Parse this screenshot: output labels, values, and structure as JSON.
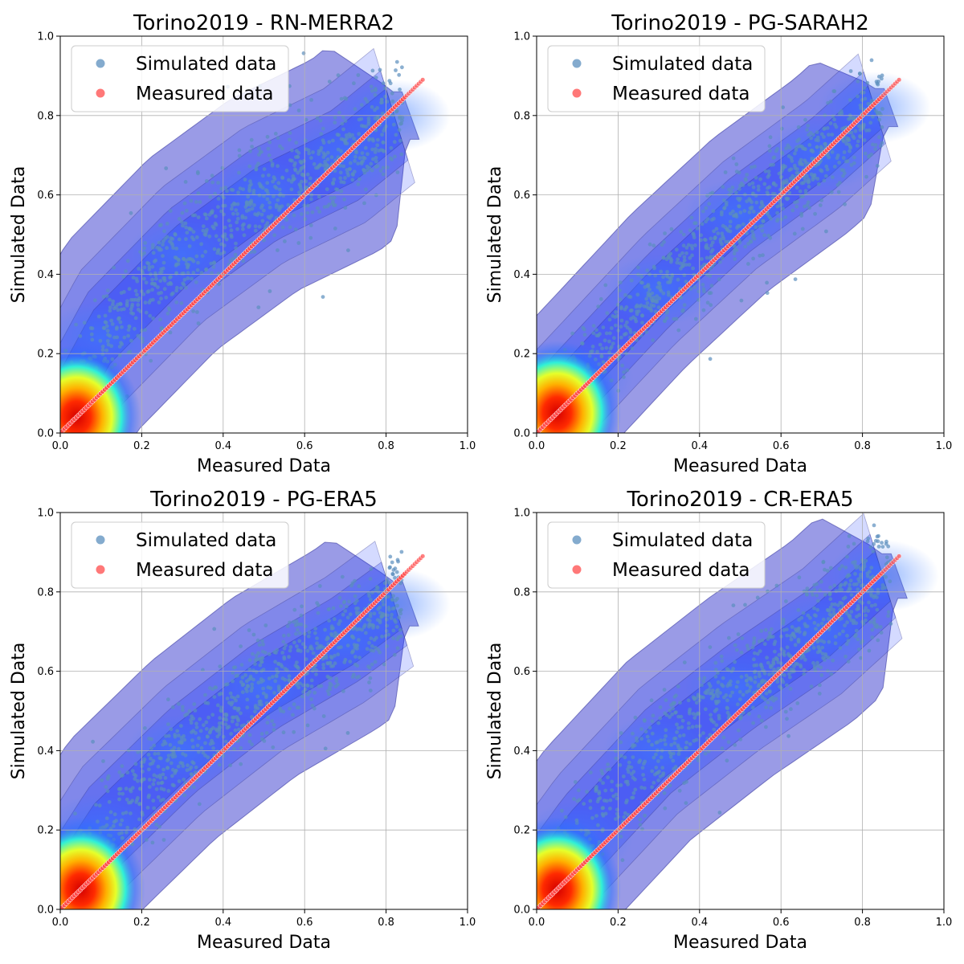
{
  "chart_data": [
    {
      "type": "scatter",
      "title": "Torino2019 - RN-MERRA2",
      "xlabel": "Measured Data",
      "ylabel": "Simulated Data",
      "xlim": [
        0,
        1
      ],
      "ylim": [
        0,
        1
      ],
      "xticks": [
        "0.0",
        "0.2",
        "0.4",
        "0.6",
        "0.8",
        "1.0"
      ],
      "yticks": [
        "0.0",
        "0.2",
        "0.4",
        "0.6",
        "0.8",
        "1.0"
      ],
      "grid": true,
      "legend_position": "top-left",
      "series": [
        {
          "name": "Simulated data",
          "color": "#5b8fbe",
          "kind": "scatter-with-kde-density"
        },
        {
          "name": "Measured data",
          "color": "#ff4b4b",
          "kind": "identity-line",
          "range": [
            0,
            0.89
          ]
        }
      ],
      "density": {
        "ridge": [
          [
            0.0,
            0.05
          ],
          [
            0.1,
            0.24
          ],
          [
            0.3,
            0.45
          ],
          [
            0.5,
            0.6
          ],
          [
            0.7,
            0.7
          ],
          [
            0.82,
            0.8
          ]
        ],
        "spread": 0.15,
        "peak": [
          0.04,
          0.04
        ]
      }
    },
    {
      "type": "scatter",
      "title": "Torino2019 - PG-SARAH2",
      "xlabel": "Measured Data",
      "ylabel": "Simulated Data",
      "xlim": [
        0,
        1
      ],
      "ylim": [
        0,
        1
      ],
      "xticks": [
        "0.0",
        "0.2",
        "0.4",
        "0.6",
        "0.8",
        "1.0"
      ],
      "yticks": [
        "0.0",
        "0.2",
        "0.4",
        "0.6",
        "0.8",
        "1.0"
      ],
      "grid": true,
      "legend_position": "top-left",
      "series": [
        {
          "name": "Simulated data",
          "color": "#5b8fbe",
          "kind": "scatter-with-kde-density"
        },
        {
          "name": "Measured data",
          "color": "#ff4b4b",
          "kind": "identity-line",
          "range": [
            0,
            0.89
          ]
        }
      ],
      "density": {
        "ridge": [
          [
            0.0,
            0.03
          ],
          [
            0.1,
            0.14
          ],
          [
            0.3,
            0.36
          ],
          [
            0.5,
            0.55
          ],
          [
            0.7,
            0.7
          ],
          [
            0.83,
            0.82
          ]
        ],
        "spread": 0.12,
        "peak": [
          0.05,
          0.05
        ]
      }
    },
    {
      "type": "scatter",
      "title": "Torino2019 - PG-ERA5",
      "xlabel": "Measured Data",
      "ylabel": "Simulated Data",
      "xlim": [
        0,
        1
      ],
      "ylim": [
        0,
        1
      ],
      "xticks": [
        "0.0",
        "0.2",
        "0.4",
        "0.6",
        "0.8",
        "1.0"
      ],
      "yticks": [
        "0.0",
        "0.2",
        "0.4",
        "0.6",
        "0.8",
        "1.0"
      ],
      "grid": true,
      "legend_position": "top-left",
      "series": [
        {
          "name": "Simulated data",
          "color": "#5b8fbe",
          "kind": "scatter-with-kde-density"
        },
        {
          "name": "Measured data",
          "color": "#ff4b4b",
          "kind": "identity-line",
          "range": [
            0,
            0.89
          ]
        }
      ],
      "density": {
        "ridge": [
          [
            0.0,
            0.04
          ],
          [
            0.1,
            0.2
          ],
          [
            0.3,
            0.4
          ],
          [
            0.5,
            0.56
          ],
          [
            0.7,
            0.68
          ],
          [
            0.82,
            0.77
          ]
        ],
        "spread": 0.14,
        "peak": [
          0.05,
          0.05
        ]
      }
    },
    {
      "type": "scatter",
      "title": "Torino2019 - CR-ERA5",
      "xlabel": "Measured Data",
      "ylabel": "Simulated Data",
      "xlim": [
        0,
        1
      ],
      "ylim": [
        0,
        1
      ],
      "xticks": [
        "0.0",
        "0.2",
        "0.4",
        "0.6",
        "0.8",
        "1.0"
      ],
      "yticks": [
        "0.0",
        "0.2",
        "0.4",
        "0.6",
        "0.8",
        "1.0"
      ],
      "grid": true,
      "legend_position": "top-left",
      "series": [
        {
          "name": "Simulated data",
          "color": "#5b8fbe",
          "kind": "scatter-with-kde-density"
        },
        {
          "name": "Measured data",
          "color": "#ff4b4b",
          "kind": "identity-line",
          "range": [
            0,
            0.89
          ]
        }
      ],
      "density": {
        "ridge": [
          [
            0.0,
            0.04
          ],
          [
            0.1,
            0.18
          ],
          [
            0.3,
            0.4
          ],
          [
            0.5,
            0.56
          ],
          [
            0.7,
            0.7
          ],
          [
            0.85,
            0.84
          ]
        ],
        "spread": 0.14,
        "peak": [
          0.05,
          0.05
        ]
      }
    }
  ]
}
